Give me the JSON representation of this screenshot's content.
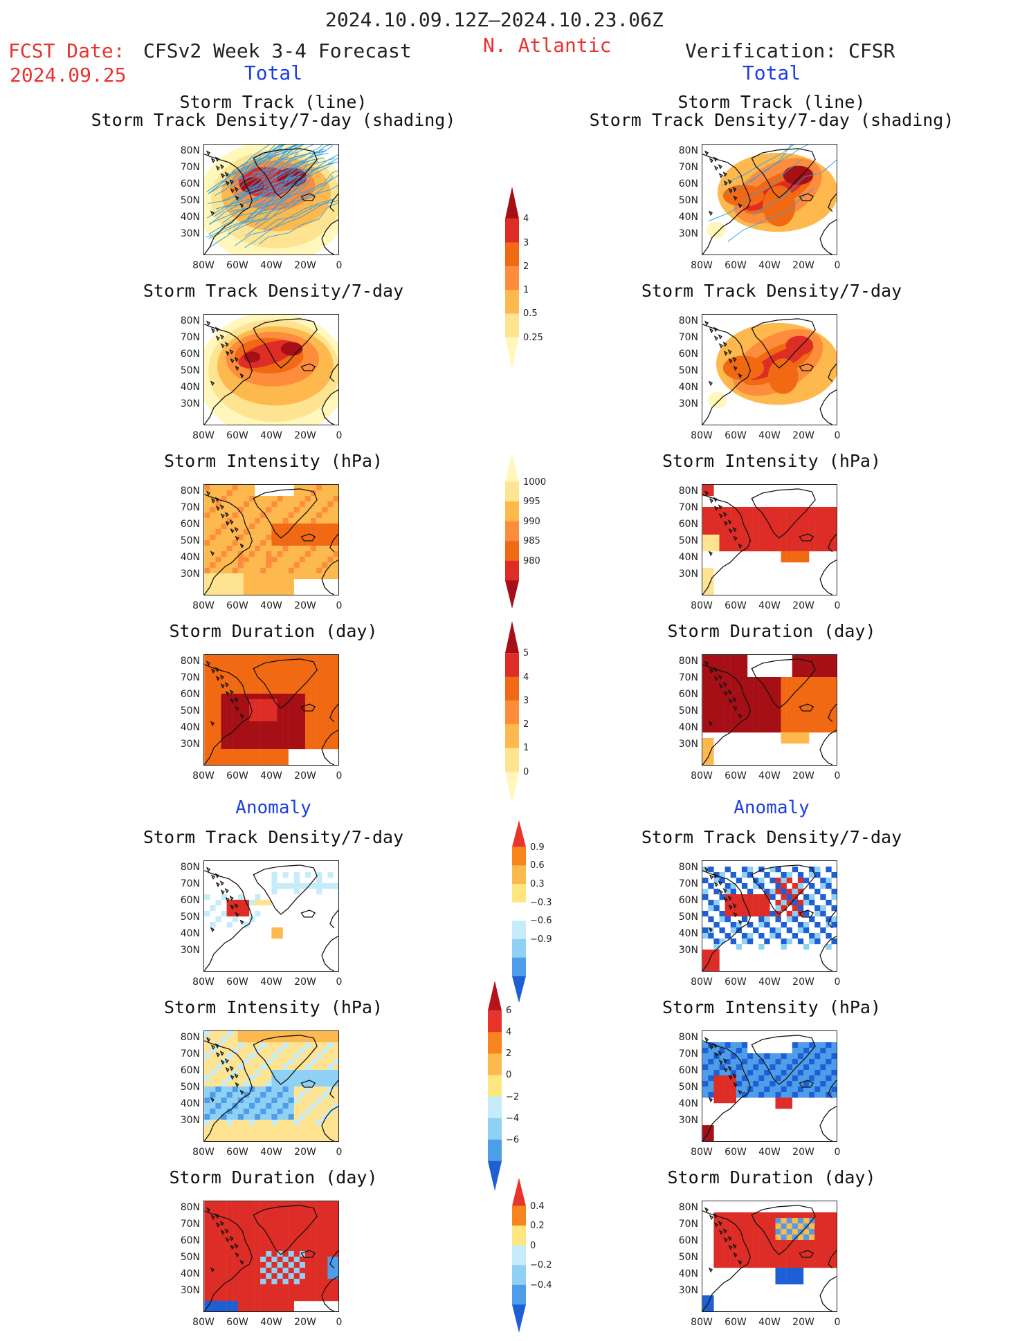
{
  "header": {
    "period": "2024.10.09.12Z–2024.10.23.06Z",
    "fcst_label": "FCST Date:",
    "fcst_date": "2024.09.25",
    "model": "CFSv2 Week 3-4 Forecast",
    "region": "N. Atlantic",
    "verification": "Verification: CFSR",
    "total_left": "Total",
    "total_right": "Total",
    "anomaly_left": "Anomaly",
    "anomaly_right": "Anomaly"
  },
  "titles": {
    "track_line": "Storm Track (line)",
    "track_shading": "Storm Track Density/7-day (shading)",
    "density": "Storm Track Density/7-day",
    "intensity": "Storm Intensity (hPa)",
    "duration": "Storm Duration (day)"
  },
  "axes": {
    "lat_labels": [
      "80N",
      "70N",
      "60N",
      "50N",
      "40N",
      "30N"
    ],
    "lon_labels": [
      "80W",
      "60W",
      "40W",
      "20W",
      "0"
    ]
  },
  "colorbars": {
    "density_total": {
      "labels": [
        "4",
        "3",
        "2",
        "1",
        "0.5",
        "0.25"
      ],
      "colors": [
        "#a50f15",
        "#de2d26",
        "#f16913",
        "#fd8d3c",
        "#fdb94e",
        "#fee391",
        "#fff7bc"
      ]
    },
    "intensity_total": {
      "labels": [
        "1000",
        "995",
        "990",
        "985",
        "980"
      ],
      "colors": [
        "#fff7bc",
        "#fee391",
        "#fdb94e",
        "#fd8d3c",
        "#f16913",
        "#de2d26",
        "#a50f15"
      ]
    },
    "duration_total": {
      "labels": [
        "5",
        "4",
        "3",
        "2",
        "1",
        "0"
      ],
      "colors": [
        "#a50f15",
        "#de2d26",
        "#f16913",
        "#fd8d3c",
        "#fdb94e",
        "#fee391",
        "#fff7bc"
      ]
    },
    "density_anom": {
      "labels": [
        "0.9",
        "0.6",
        "0.3",
        "−0.3",
        "−0.6",
        "−0.9"
      ],
      "colors": [
        "#e8342a",
        "#f7841d",
        "#fdb94e",
        "#fee680",
        "#ffffff",
        "#c6ecfb",
        "#8fd0f5",
        "#4d9de8",
        "#1f5fd6"
      ]
    },
    "intensity_anom": {
      "labels": [
        "6",
        "4",
        "2",
        "0",
        "−2",
        "−4",
        "−6"
      ],
      "colors": [
        "#b5121b",
        "#e8342a",
        "#f7841d",
        "#fdb94e",
        "#fee680",
        "#c6ecfb",
        "#8fd0f5",
        "#4d9de8",
        "#1f5fd6"
      ]
    },
    "duration_anom": {
      "labels": [
        "0.4",
        "0.2",
        "0",
        "−0.2",
        "−0.4"
      ],
      "colors": [
        "#e8342a",
        "#f7841d",
        "#fee680",
        "#c6ecfb",
        "#8fd0f5",
        "#4d9de8",
        "#1f5fd6"
      ]
    }
  }
}
